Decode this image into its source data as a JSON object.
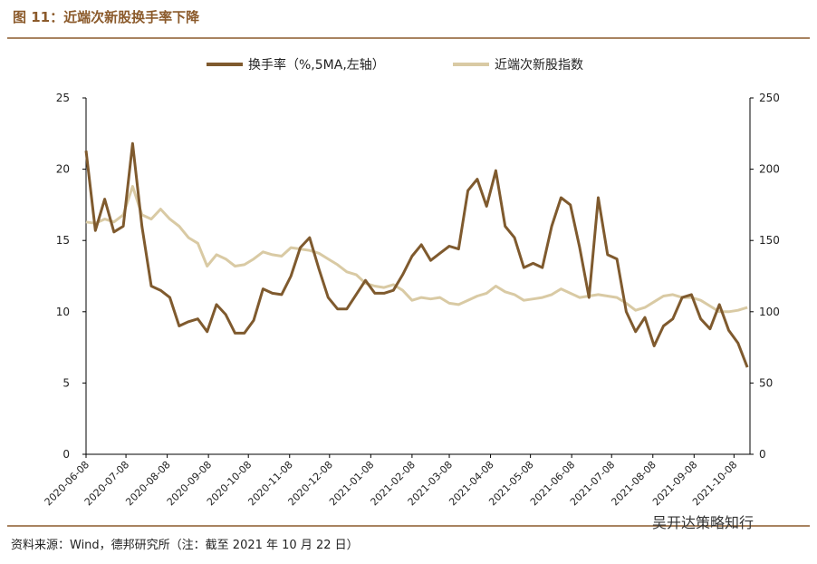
{
  "chart_data": {
    "type": "line",
    "title": "图 11：近端次新股换手率下降",
    "source": "资料来源：Wind，德邦研究所（注：截至 2021 年 10 月 22 日）",
    "watermark": "吴开达策略知行",
    "x": [
      "2020-06-08",
      "2020-06-15",
      "2020-06-22",
      "2020-06-29",
      "2020-07-06",
      "2020-07-13",
      "2020-07-20",
      "2020-07-27",
      "2020-08-03",
      "2020-08-10",
      "2020-08-17",
      "2020-08-24",
      "2020-08-31",
      "2020-09-07",
      "2020-09-14",
      "2020-09-21",
      "2020-09-28",
      "2020-10-05",
      "2020-10-12",
      "2020-10-19",
      "2020-10-26",
      "2020-11-02",
      "2020-11-09",
      "2020-11-16",
      "2020-11-23",
      "2020-11-30",
      "2020-12-07",
      "2020-12-14",
      "2020-12-21",
      "2020-12-28",
      "2021-01-04",
      "2021-01-11",
      "2021-01-18",
      "2021-01-25",
      "2021-02-01",
      "2021-02-08",
      "2021-02-15",
      "2021-02-22",
      "2021-03-01",
      "2021-03-08",
      "2021-03-15",
      "2021-03-22",
      "2021-03-29",
      "2021-04-05",
      "2021-04-12",
      "2021-04-19",
      "2021-04-26",
      "2021-05-03",
      "2021-05-10",
      "2021-05-17",
      "2021-05-24",
      "2021-05-31",
      "2021-06-07",
      "2021-06-14",
      "2021-06-21",
      "2021-06-28",
      "2021-07-05",
      "2021-07-12",
      "2021-07-19",
      "2021-07-26",
      "2021-08-02",
      "2021-08-09",
      "2021-08-16",
      "2021-08-23",
      "2021-08-30",
      "2021-09-06",
      "2021-09-13",
      "2021-09-20",
      "2021-09-27",
      "2021-10-04",
      "2021-10-11",
      "2021-10-18"
    ],
    "xlim": [
      "2020-06-08",
      "2021-10-20"
    ],
    "xticks": [
      "2020-06-08",
      "2020-07-08",
      "2020-08-08",
      "2020-09-08",
      "2020-10-08",
      "2020-11-08",
      "2020-12-08",
      "2021-01-08",
      "2021-02-08",
      "2021-03-08",
      "2021-04-08",
      "2021-05-08",
      "2021-06-08",
      "2021-07-08",
      "2021-08-08",
      "2021-09-08",
      "2021-10-08"
    ],
    "ylim": [
      0,
      25
    ],
    "yticks": [
      0,
      5,
      10,
      15,
      20,
      25
    ],
    "y2lim": [
      0,
      250
    ],
    "y2ticks": [
      0,
      50,
      100,
      150,
      200,
      250
    ],
    "series": [
      {
        "name": "换手率（%,5MA,左轴）",
        "color": "#7f5a2e",
        "axis": "y",
        "values": [
          21.3,
          15.7,
          17.9,
          15.6,
          16,
          21.8,
          16,
          11.8,
          11.5,
          11,
          9,
          9.3,
          9.5,
          8.6,
          10.5,
          9.8,
          8.5,
          8.5,
          9.4,
          11.6,
          11.3,
          11.2,
          12.5,
          14.5,
          15.2,
          13,
          11,
          10.2,
          10.2,
          11.2,
          12.2,
          11.3,
          11.3,
          11.5,
          12.6,
          13.9,
          14.7,
          13.6,
          14.1,
          14.6,
          14.4,
          18.5,
          19.3,
          17.4,
          19.9,
          16,
          15.2,
          13.1,
          13.4,
          13.1,
          16,
          18,
          17.5,
          14.5,
          11,
          18,
          14,
          13.7,
          10,
          8.6,
          9.6,
          7.6,
          9,
          9.5,
          11,
          11.2,
          9.5,
          8.8,
          10.5,
          8.7,
          7.8,
          6.1
        ]
      },
      {
        "name": "近端次新股指数",
        "color": "#d9caa4",
        "axis": "y2",
        "values": [
          163,
          162,
          165,
          163,
          168,
          188,
          168,
          165,
          172,
          165,
          160,
          152,
          148,
          132,
          140,
          137,
          132,
          133,
          137,
          142,
          140,
          139,
          145,
          144,
          143,
          141,
          137,
          133,
          128,
          126,
          120,
          118,
          117,
          119,
          115,
          108,
          110,
          109,
          110,
          106,
          105,
          108,
          111,
          113,
          118,
          114,
          112,
          108,
          109,
          110,
          112,
          116,
          113,
          110,
          111,
          112,
          111,
          110,
          106,
          101,
          103,
          107,
          111,
          112,
          110,
          110,
          108,
          104,
          100,
          100,
          101,
          103
        ]
      }
    ]
  }
}
